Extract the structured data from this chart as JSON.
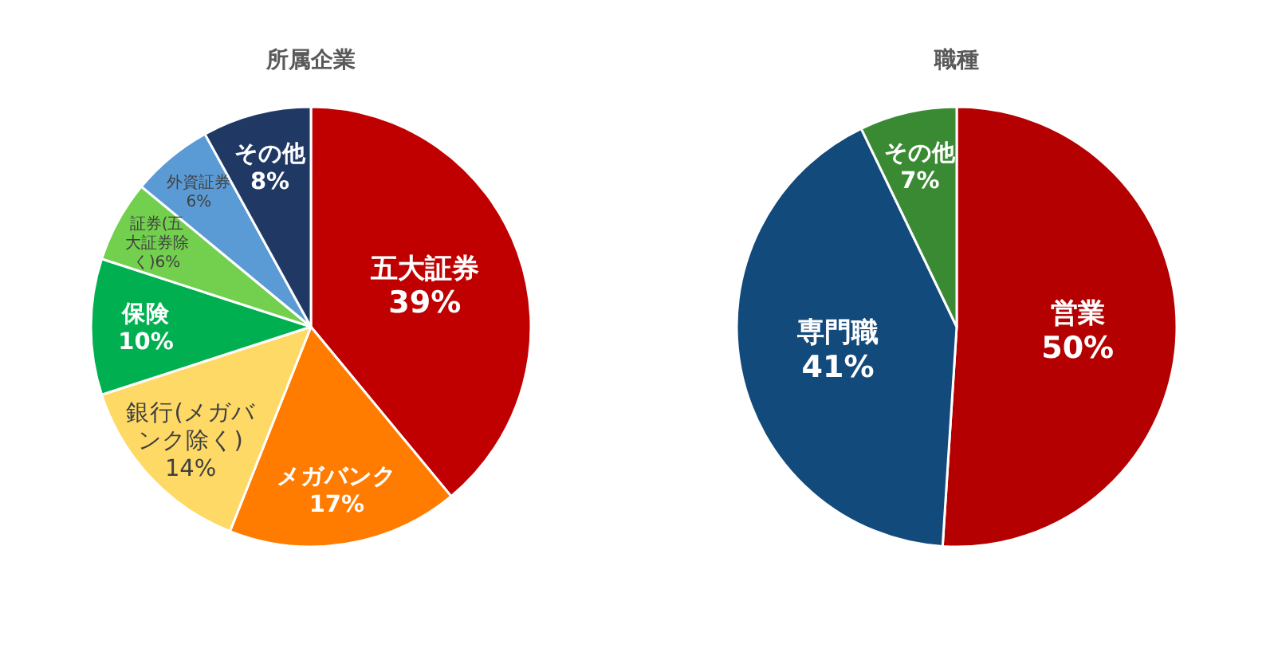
{
  "chart_data": [
    {
      "type": "pie",
      "title": "所属企業",
      "categories": [
        "五大証券",
        "メガバンク",
        "銀行(メガバンク除く)",
        "保険",
        "証券(五大証券除く)",
        "外資証券",
        "その他"
      ],
      "values": [
        39,
        17,
        14,
        10,
        6,
        6,
        8
      ],
      "colors": [
        "#c00000",
        "#ff7c00",
        "#ffd966",
        "#00b050",
        "#72d04e",
        "#5b9bd5",
        "#203864"
      ],
      "value_labels": [
        "39%",
        "17%",
        "14%",
        "10%",
        "6%",
        "6%",
        "8%"
      ]
    },
    {
      "type": "pie",
      "title": "職種",
      "categories": [
        "営業",
        "専門職",
        "その他"
      ],
      "values": [
        50,
        41,
        7
      ],
      "colors": [
        "#b40000",
        "#134a7c",
        "#3a8a33"
      ],
      "value_labels": [
        "50%",
        "41%",
        "7%"
      ]
    }
  ]
}
